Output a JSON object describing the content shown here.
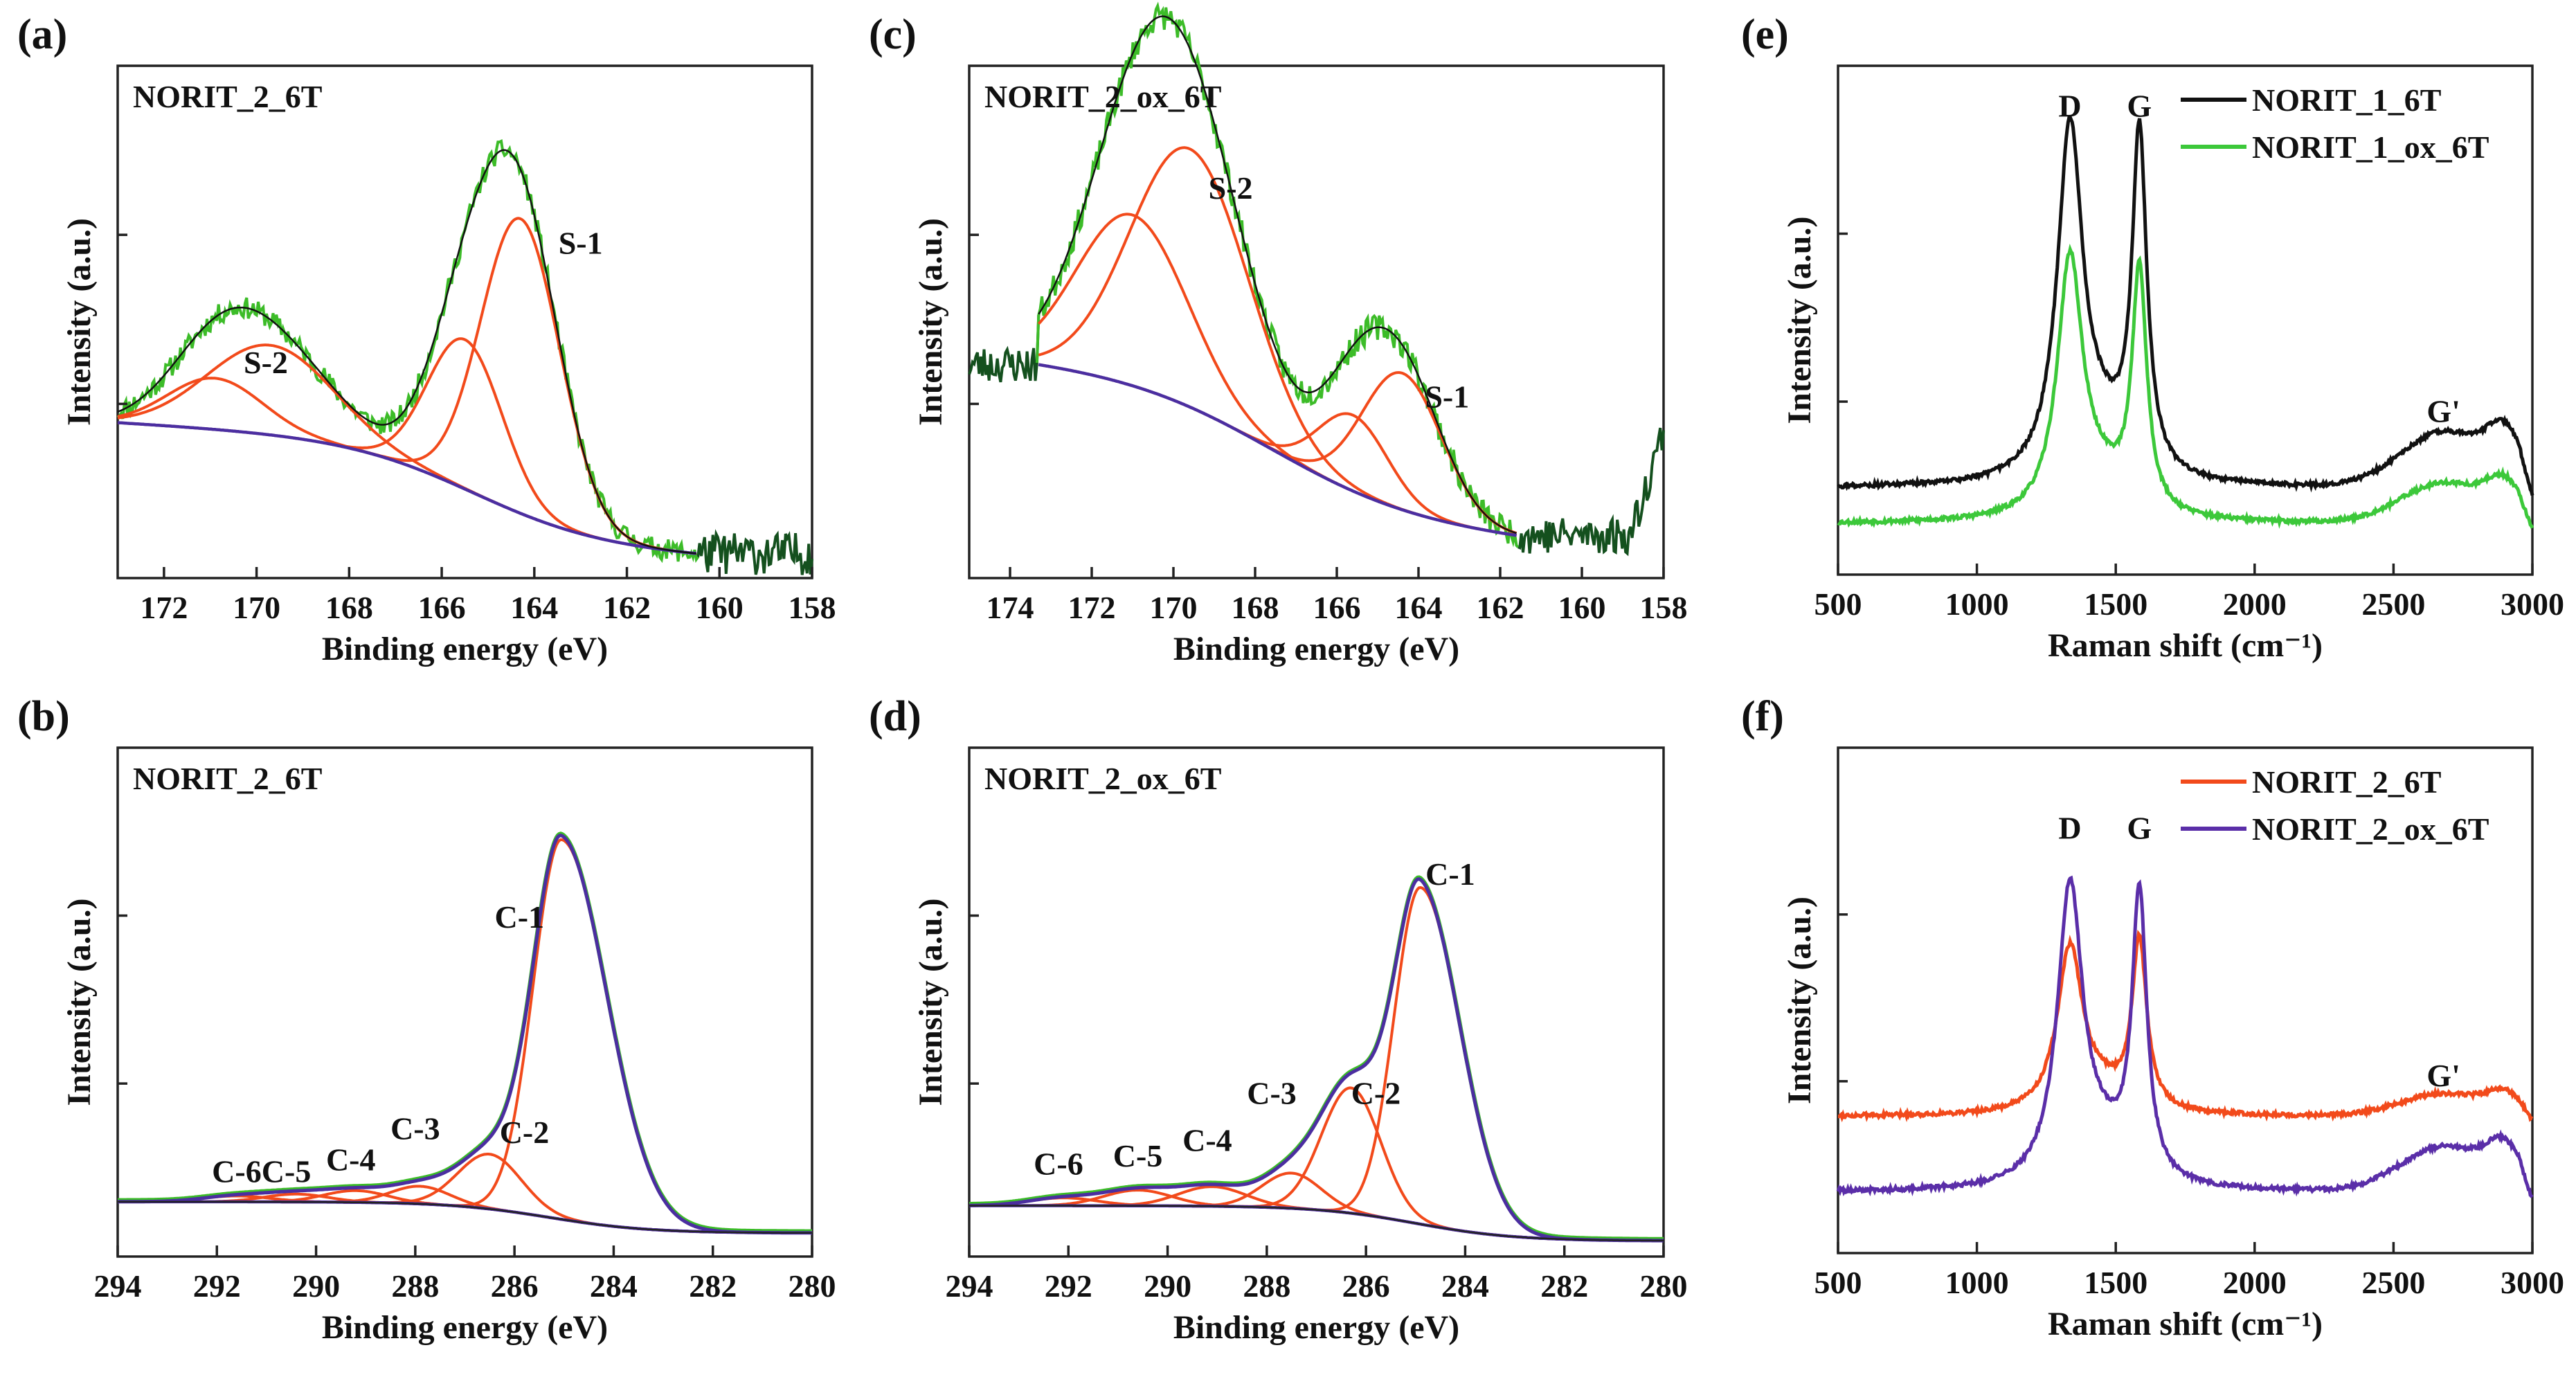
{
  "colors": {
    "raw": "#3cbc28",
    "component": "#f24a1b",
    "background": "#4b2ea0",
    "envelope": "#111111",
    "darkgreen": "#14501e",
    "raman_black": "#111111",
    "raman_green": "#3cc83a",
    "raman_red": "#f24a1b",
    "raman_purple": "#5a2ea8"
  },
  "chart_data": [
    {
      "id": "a",
      "panel_label": "(a)",
      "type": "line",
      "sample": "NORIT_2_6T",
      "xlabel": "Binding energy (eV)",
      "ylabel": "Intensity (a.u.)",
      "xlim": [
        173,
        158
      ],
      "ylim": [
        -0.05,
        1.15
      ],
      "xticks": [
        172,
        170,
        168,
        166,
        164,
        162,
        160,
        158
      ],
      "baseline": {
        "type": "shirley",
        "high": 0.24,
        "low": 0.0,
        "center": 165.3,
        "width": 1.4,
        "slope": 0.006,
        "x_range": [
          173,
          160.5
        ]
      },
      "components": [
        {
          "label": "S-1",
          "center": 164.3,
          "height": 0.69,
          "fwhm": 2.0,
          "label_pos": [
            163.0,
            0.71
          ]
        },
        {
          "label": "",
          "center": 165.5,
          "height": 0.35,
          "fwhm": 1.9
        },
        {
          "label": "S-2",
          "center": 169.7,
          "height": 0.21,
          "fwhm": 3.2,
          "label_pos": [
            169.8,
            0.43
          ]
        },
        {
          "label": "",
          "center": 170.9,
          "height": 0.12,
          "fwhm": 2.4
        }
      ],
      "raw": {
        "x_range": [
          173,
          158
        ],
        "noise": 0.025,
        "extra_noise_tail": 0.05,
        "seed": 11
      }
    },
    {
      "id": "c",
      "panel_label": "(c)",
      "type": "line",
      "sample": "NORIT_2_ox_6T",
      "xlabel": "Binding energy (eV)",
      "ylabel": "Intensity (a.u.)",
      "xlim": [
        175,
        158
      ],
      "ylim": [
        -0.1,
        1.25
      ],
      "xticks": [
        174,
        172,
        170,
        168,
        166,
        164,
        162,
        160,
        158
      ],
      "baseline": {
        "type": "shirley",
        "high": 0.36,
        "low": 0.0,
        "center": 167.6,
        "width": 1.8,
        "slope": 0.01,
        "x_range": [
          173.3,
          161.6
        ]
      },
      "components": [
        {
          "label": "S-2",
          "center": 169.6,
          "height": 0.68,
          "fwhm": 3.4,
          "label_pos": [
            168.6,
            0.9
          ]
        },
        {
          "label": "",
          "center": 171.0,
          "height": 0.45,
          "fwhm": 3.2
        },
        {
          "label": "S-1",
          "center": 164.4,
          "height": 0.36,
          "fwhm": 2.3,
          "label_pos": [
            163.3,
            0.35
          ]
        },
        {
          "label": "",
          "center": 165.6,
          "height": 0.2,
          "fwhm": 2.0
        }
      ],
      "raw": {
        "x_range": [
          175,
          158
        ],
        "noise": 0.035,
        "extra_noise_tail": 0.05,
        "seed": 23,
        "rise_at_end": true
      }
    },
    {
      "id": "e",
      "panel_label": "(e)",
      "type": "line",
      "chart": "raman",
      "xlabel": "Raman shift (cm⁻¹)",
      "ylabel": "Intensity (a.u.)",
      "xlim": [
        500,
        3000
      ],
      "ylim": [
        0,
        1.0
      ],
      "xticks": [
        500,
        1000,
        1500,
        2000,
        2500,
        3000
      ],
      "series": [
        {
          "name": "NORIT_1_6T",
          "color_key": "raman_black",
          "offset": 0.17,
          "D": 0.68,
          "G": 0.66,
          "Gp": 0.11
        },
        {
          "name": "NORIT_1_ox_6T",
          "color_key": "raman_green",
          "offset": 0.1,
          "D": 0.5,
          "G": 0.47,
          "Gp": 0.08
        }
      ],
      "peak_labels": [
        {
          "text": "D",
          "x": 1335,
          "y": 0.9
        },
        {
          "text": "G",
          "x": 1585,
          "y": 0.9
        },
        {
          "text": "G'",
          "x": 2680,
          "y": 0.3
        }
      ]
    },
    {
      "id": "b",
      "panel_label": "(b)",
      "type": "line",
      "sample": "NORIT_2_6T",
      "xlabel": "Binding energy (eV)",
      "ylabel": "Intensity (a.u.)",
      "xlim": [
        294,
        280
      ],
      "ylim": [
        -0.12,
        1.18
      ],
      "xticks": [
        294,
        292,
        290,
        288,
        286,
        284,
        282,
        280
      ],
      "baseline": {
        "type": "shirley",
        "high": 0.02,
        "low": -0.06,
        "center": 285.3,
        "width": 1.0,
        "slope": 0.0,
        "x_range": [
          294,
          280
        ]
      },
      "components": [
        {
          "label": "C-1",
          "center": 285.05,
          "height": 0.97,
          "fwhm": 1.35,
          "asym": 1.6,
          "label_pos": [
            285.9,
            0.72
          ]
        },
        {
          "label": "C-2",
          "center": 286.5,
          "height": 0.14,
          "fwhm": 1.5,
          "label_pos": [
            285.8,
            0.17
          ]
        },
        {
          "label": "C-3",
          "center": 287.9,
          "height": 0.045,
          "fwhm": 1.4,
          "label_pos": [
            288.0,
            0.18
          ]
        },
        {
          "label": "C-4",
          "center": 289.2,
          "height": 0.03,
          "fwhm": 1.5,
          "label_pos": [
            289.3,
            0.1
          ]
        },
        {
          "label": "C-5",
          "center": 290.4,
          "height": 0.02,
          "fwhm": 1.5,
          "label_pos": [
            290.6,
            0.07
          ]
        },
        {
          "label": "C-6",
          "center": 291.6,
          "height": 0.015,
          "fwhm": 1.6,
          "label_pos": [
            291.6,
            0.07
          ]
        }
      ]
    },
    {
      "id": "d",
      "panel_label": "(d)",
      "type": "line",
      "sample": "NORIT_2_ox_6T",
      "xlabel": "Binding energy (eV)",
      "ylabel": "Intensity (a.u.)",
      "xlim": [
        294,
        280
      ],
      "ylim": [
        -0.12,
        1.18
      ],
      "xticks": [
        294,
        292,
        290,
        288,
        286,
        284,
        282,
        280
      ],
      "baseline": {
        "type": "shirley",
        "high": 0.01,
        "low": -0.08,
        "center": 285.0,
        "width": 1.0,
        "slope": 0.0,
        "x_range": [
          294,
          280
        ]
      },
      "components": [
        {
          "label": "C-1",
          "center": 284.9,
          "height": 0.86,
          "fwhm": 1.25,
          "asym": 1.5,
          "label_pos": [
            284.3,
            0.83
          ]
        },
        {
          "label": "C-2",
          "center": 286.3,
          "height": 0.32,
          "fwhm": 1.4,
          "label_pos": [
            285.8,
            0.27
          ]
        },
        {
          "label": "C-3",
          "center": 287.5,
          "height": 0.09,
          "fwhm": 1.4,
          "label_pos": [
            287.9,
            0.27
          ]
        },
        {
          "label": "C-4",
          "center": 289.1,
          "height": 0.05,
          "fwhm": 1.6,
          "label_pos": [
            289.2,
            0.15
          ]
        },
        {
          "label": "C-5",
          "center": 290.6,
          "height": 0.04,
          "fwhm": 1.6,
          "label_pos": [
            290.6,
            0.11
          ]
        },
        {
          "label": "C-6",
          "center": 292.1,
          "height": 0.02,
          "fwhm": 1.6,
          "label_pos": [
            292.2,
            0.09
          ]
        }
      ]
    },
    {
      "id": "f",
      "panel_label": "(f)",
      "type": "line",
      "chart": "raman",
      "xlabel": "Raman shift (cm⁻¹)",
      "ylabel": "Intensity (a.u.)",
      "xlim": [
        500,
        3000
      ],
      "ylim": [
        0,
        1.0
      ],
      "xticks": [
        500,
        1000,
        1500,
        2000,
        2500,
        3000
      ],
      "series": [
        {
          "name": "NORIT_2_6T",
          "color_key": "raman_red",
          "offset": 0.27,
          "D": 0.32,
          "G": 0.33,
          "Gp": 0.045
        },
        {
          "name": "NORIT_2_ox_6T",
          "color_key": "raman_purple",
          "offset": 0.12,
          "D": 0.58,
          "G": 0.56,
          "Gp": 0.09
        }
      ],
      "peak_labels": [
        {
          "text": "D",
          "x": 1335,
          "y": 0.82
        },
        {
          "text": "G",
          "x": 1585,
          "y": 0.82
        },
        {
          "text": "G'",
          "x": 2680,
          "y": 0.33
        }
      ]
    }
  ]
}
